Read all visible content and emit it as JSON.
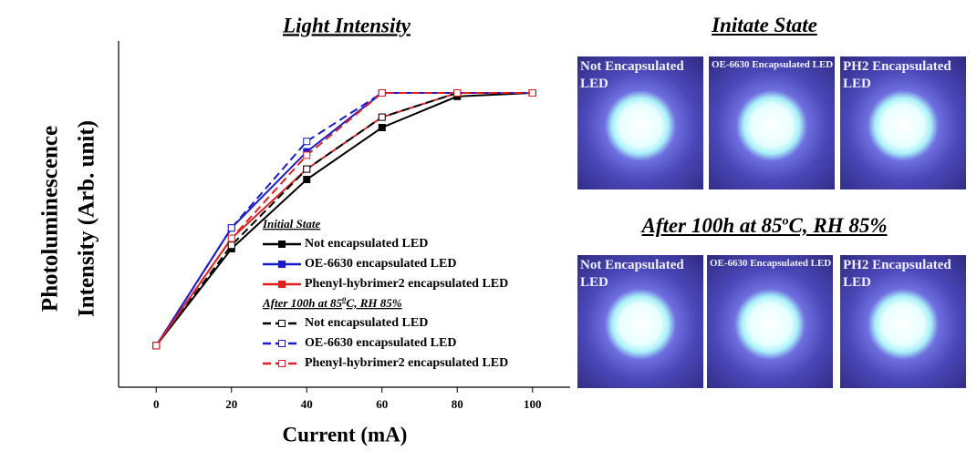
{
  "chart_data": {
    "type": "line",
    "title": "Light Intensity",
    "xlabel": "Current (mA)",
    "ylabel": [
      "Photoluminescence",
      "Intensity (Arb. unit)"
    ],
    "x": [
      0,
      20,
      40,
      60,
      80,
      100
    ],
    "xlim": [
      -10,
      110
    ],
    "xticks": [
      0,
      20,
      40,
      60,
      80,
      100
    ],
    "ylim": [
      0,
      1
    ],
    "legend_groups": [
      {
        "title": [
          "Initial State"
        ],
        "series": [
          0,
          1,
          2
        ]
      },
      {
        "title": [
          "After 100h at 85",
          "o",
          "C, RH 85%"
        ],
        "series": [
          3,
          4,
          5
        ]
      }
    ],
    "series": [
      {
        "name": "Not encapsulated LED",
        "color": "#000000",
        "marker": "filled",
        "dashed": false,
        "values": [
          0.12,
          0.4,
          0.6,
          0.75,
          0.84,
          0.85
        ]
      },
      {
        "name": "OE-6630 encapsulated LED",
        "color": "#1a1acc",
        "marker": "filled",
        "dashed": false,
        "values": [
          0.12,
          0.46,
          0.68,
          0.85,
          0.85,
          0.85
        ]
      },
      {
        "name": "Phenyl-hybrimer2 encapsulated LED",
        "color": "#e02020",
        "marker": "filled",
        "dashed": false,
        "values": [
          0.12,
          0.43,
          0.63,
          0.78,
          0.85,
          0.85
        ]
      },
      {
        "name": "Not encapsulated LED",
        "color": "#000000",
        "marker": "open",
        "dashed": true,
        "values": [
          0.12,
          0.41,
          0.63,
          0.78,
          0.85,
          0.85
        ]
      },
      {
        "name": "OE-6630 encapsulated LED",
        "color": "#1a1acc",
        "marker": "open",
        "dashed": true,
        "values": [
          0.12,
          0.46,
          0.71,
          0.85,
          0.85,
          0.85
        ]
      },
      {
        "name": "Phenyl-hybrimer2 encapsulated LED",
        "color": "#e02020",
        "marker": "open",
        "dashed": true,
        "values": [
          0.12,
          0.43,
          0.67,
          0.85,
          0.85,
          0.85
        ]
      }
    ]
  },
  "photos": {
    "initial_title": "Initate State",
    "after_title": [
      "After 100h at 85",
      "o",
      "C, RH 85%"
    ],
    "initial": [
      "Not Encapsulated LED",
      "OE-6630 Encapsulated LED",
      "PH2 Encapsulated LED"
    ],
    "after": [
      "Not Encapsulated LED",
      "OE-6630 Encapsulated LED",
      "PH2 Encapsulated LED"
    ]
  }
}
